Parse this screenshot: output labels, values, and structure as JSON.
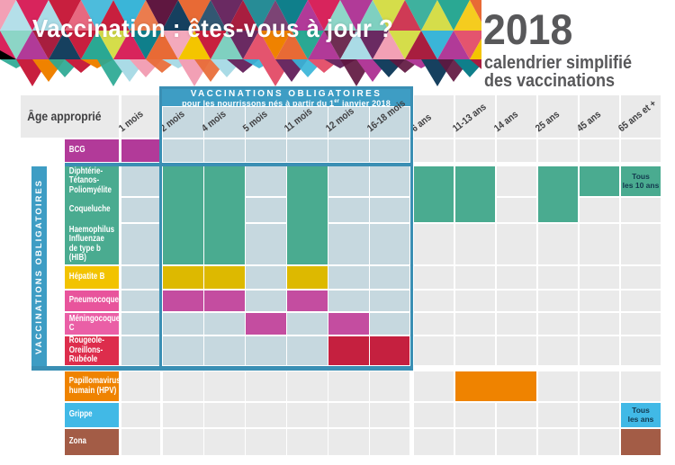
{
  "banner": {
    "title": "Vaccination : êtes-vous à jour ?",
    "year": "2018",
    "subtitle_line1": "calendrier simplifié",
    "subtitle_line2": "des vaccinations",
    "mosaic_palette": [
      "#d8245c",
      "#a81e3f",
      "#5f1740",
      "#e4546e",
      "#f2a0b5",
      "#2aa893",
      "#7fd0c0",
      "#0f7f8b",
      "#16405f",
      "#3ab5d8",
      "#aadbe6",
      "#ef8200",
      "#f4c500",
      "#d5dd4a",
      "#b13a98",
      "#6a2a62",
      "#e86a35",
      "#c81f3e"
    ]
  },
  "table": {
    "corner_label": "Âge approprié",
    "side_strip_label": "VACCINATIONS OBLIGATOIRES",
    "mandatory_box": {
      "title": "VACCINATIONS OBLIGATOIRES",
      "subtitle_prefix": "pour les nourrissons nés à partir du 1",
      "subtitle_sup": "er",
      "subtitle_suffix": " janvier 2018",
      "band_color": "#3e9dc4",
      "border_color": "#3a8fb4",
      "inner_cell_color": "#c6d8df"
    },
    "outer_cell_color": "#eaeaea",
    "columns": [
      {
        "id": "1m",
        "label": "1 mois",
        "zone": "outside"
      },
      {
        "id": "2m",
        "label": "2 mois",
        "zone": "box"
      },
      {
        "id": "4m",
        "label": "4 mois",
        "zone": "box"
      },
      {
        "id": "5m",
        "label": "5 mois",
        "zone": "box"
      },
      {
        "id": "11m",
        "label": "11 mois",
        "zone": "box"
      },
      {
        "id": "12m",
        "label": "12 mois",
        "zone": "box"
      },
      {
        "id": "16-18m",
        "label": "16-18 mois",
        "zone": "box"
      },
      {
        "id": "6a",
        "label": "6 ans",
        "zone": "right"
      },
      {
        "id": "11-13a",
        "label": "11-13 ans",
        "zone": "right"
      },
      {
        "id": "14a",
        "label": "14 ans",
        "zone": "right"
      },
      {
        "id": "25a",
        "label": "25 ans",
        "zone": "right"
      },
      {
        "id": "45a",
        "label": "45 ans",
        "zone": "right"
      },
      {
        "id": "65a",
        "label": "65 ans et +",
        "zone": "right"
      }
    ],
    "rows": [
      {
        "id": "bcg",
        "label": "BCG",
        "label_color": "#b23a99",
        "cell_color": "#b23a99"
      },
      {
        "id": "dtp",
        "label": "Diphtérie-Tétanos-\nPoliomyélite",
        "label_color": "#4aab90",
        "cell_color": "#4aab90"
      },
      {
        "id": "coq",
        "label": "Coqueluche",
        "label_color": "#4aab90",
        "cell_color": "#4aab90"
      },
      {
        "id": "hib",
        "label": "Haemophilus\nInfluenzae de type b\n(HIB)",
        "label_color": "#4aab90",
        "cell_color": "#4aab90"
      },
      {
        "id": "hepb",
        "label": "Hépatite B",
        "label_color": "#f2c300",
        "cell_color": "#ddb900"
      },
      {
        "id": "pneumo",
        "label": "Pneumocoque",
        "label_color": "#e8549c",
        "cell_color": "#c44da0"
      },
      {
        "id": "meningo",
        "label": "Méningocoque C",
        "label_color": "#ea5fa6",
        "cell_color": "#c44da0"
      },
      {
        "id": "ror",
        "label": "Rougeole-Oreillons-\nRubéole",
        "label_color": "#dd2d4c",
        "cell_color": "#c5203f"
      },
      {
        "id": "hpv",
        "label": "Papillomavirus\nhumain (HPV)",
        "label_color": "#ef8300",
        "cell_color": "#ef8300"
      },
      {
        "id": "grippe",
        "label": "Grippe",
        "label_color": "#41b9e6",
        "cell_color": "#41b9e6"
      },
      {
        "id": "zona",
        "label": "Zona",
        "label_color": "#a35c46",
        "cell_color": "#a35c46"
      }
    ],
    "dose_blocks": [
      {
        "rows": [
          "bcg"
        ],
        "cols": [
          "1m"
        ]
      },
      {
        "rows": [
          "dtp",
          "coq",
          "hib"
        ],
        "cols": [
          "2m"
        ]
      },
      {
        "rows": [
          "dtp",
          "coq",
          "hib"
        ],
        "cols": [
          "4m"
        ]
      },
      {
        "rows": [
          "dtp",
          "coq",
          "hib"
        ],
        "cols": [
          "11m"
        ]
      },
      {
        "rows": [
          "dtp",
          "coq"
        ],
        "cols": [
          "6a"
        ]
      },
      {
        "rows": [
          "dtp",
          "coq"
        ],
        "cols": [
          "11-13a"
        ]
      },
      {
        "rows": [
          "dtp",
          "coq"
        ],
        "cols": [
          "25a"
        ]
      },
      {
        "rows": [
          "dtp"
        ],
        "cols": [
          "45a"
        ]
      },
      {
        "rows": [
          "dtp"
        ],
        "cols": [
          "65a"
        ],
        "note": "Tous\nles 10 ans"
      },
      {
        "rows": [
          "hepb"
        ],
        "cols": [
          "2m"
        ]
      },
      {
        "rows": [
          "hepb"
        ],
        "cols": [
          "4m"
        ]
      },
      {
        "rows": [
          "hepb"
        ],
        "cols": [
          "11m"
        ]
      },
      {
        "rows": [
          "pneumo"
        ],
        "cols": [
          "2m"
        ]
      },
      {
        "rows": [
          "pneumo"
        ],
        "cols": [
          "4m"
        ]
      },
      {
        "rows": [
          "pneumo"
        ],
        "cols": [
          "11m"
        ]
      },
      {
        "rows": [
          "meningo"
        ],
        "cols": [
          "5m"
        ]
      },
      {
        "rows": [
          "meningo"
        ],
        "cols": [
          "12m"
        ]
      },
      {
        "rows": [
          "ror"
        ],
        "cols": [
          "12m"
        ]
      },
      {
        "rows": [
          "ror"
        ],
        "cols": [
          "16-18m"
        ]
      },
      {
        "rows": [
          "hpv"
        ],
        "cols": [
          "11-13a",
          "14a"
        ]
      },
      {
        "rows": [
          "grippe"
        ],
        "cols": [
          "65a"
        ],
        "note": "Tous\nles ans"
      },
      {
        "rows": [
          "zona"
        ],
        "cols": [
          "65a"
        ]
      }
    ]
  }
}
